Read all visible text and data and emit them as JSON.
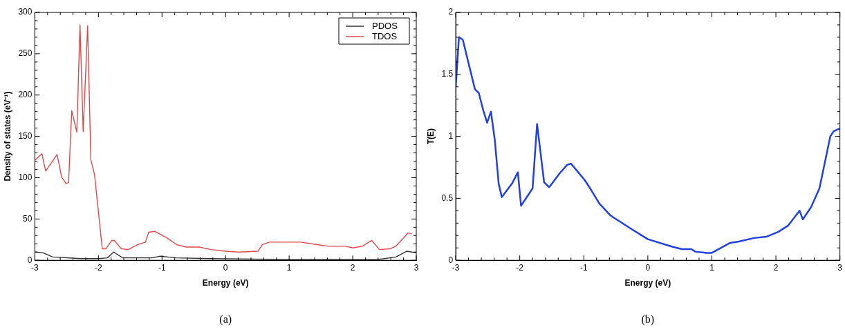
{
  "chart_data": [
    {
      "type": "line",
      "xlabel": "Energy (eV)",
      "ylabel": "Density of states (eV⁻¹)",
      "xlim": [
        -3,
        3
      ],
      "ylim": [
        0,
        300
      ],
      "xticks": [
        -3,
        {
          "value": -2.8,
          "label": null
        },
        {
          "value": -2.6,
          "label": null
        },
        {
          "value": -2.4,
          "label": null
        },
        {
          "value": -2.2,
          "label": null
        },
        -2,
        {
          "value": -1.8,
          "label": null
        },
        {
          "value": -1.6,
          "label": null
        },
        {
          "value": -1.4,
          "label": null
        },
        {
          "value": -1.2,
          "label": null
        },
        -1,
        {
          "value": -0.8,
          "label": null
        },
        {
          "value": -0.6,
          "label": null
        },
        {
          "value": -0.4,
          "label": null
        },
        {
          "value": -0.2,
          "label": null
        },
        0,
        {
          "value": 0.2,
          "label": null
        },
        {
          "value": 0.4,
          "label": null
        },
        {
          "value": 0.6,
          "label": null
        },
        {
          "value": 0.8,
          "label": null
        },
        1,
        {
          "value": 1.2,
          "label": null
        },
        {
          "value": 1.4,
          "label": null
        },
        {
          "value": 1.6,
          "label": null
        },
        {
          "value": 1.8,
          "label": null
        },
        2,
        {
          "value": 2.2,
          "label": null
        },
        {
          "value": 2.4,
          "label": null
        },
        {
          "value": 2.6,
          "label": null
        },
        {
          "value": 2.8,
          "label": null
        },
        3
      ],
      "yticks": [
        0,
        {
          "value": 10,
          "label": null
        },
        {
          "value": 20,
          "label": null
        },
        {
          "value": 30,
          "label": null
        },
        {
          "value": 40,
          "label": null
        },
        50,
        {
          "value": 60,
          "label": null
        },
        {
          "value": 70,
          "label": null
        },
        {
          "value": 80,
          "label": null
        },
        {
          "value": 90,
          "label": null
        },
        100,
        {
          "value": 110,
          "label": null
        },
        {
          "value": 120,
          "label": null
        },
        {
          "value": 130,
          "label": null
        },
        {
          "value": 140,
          "label": null
        },
        150,
        {
          "value": 160,
          "label": null
        },
        {
          "value": 170,
          "label": null
        },
        {
          "value": 180,
          "label": null
        },
        {
          "value": 190,
          "label": null
        },
        200,
        {
          "value": 210,
          "label": null
        },
        {
          "value": 220,
          "label": null
        },
        {
          "value": 230,
          "label": null
        },
        {
          "value": 240,
          "label": null
        },
        250,
        {
          "value": 260,
          "label": null
        },
        {
          "value": 270,
          "label": null
        },
        {
          "value": 280,
          "label": null
        },
        {
          "value": 290,
          "label": null
        },
        300
      ],
      "legend": "top right",
      "marker": "none",
      "annotations": [
        "(a)"
      ],
      "series": [
        {
          "name": "PDOS",
          "color": "#333333",
          "x": [
            -3,
            -2.87,
            -2.72,
            -2.27,
            -2.0,
            -1.86,
            -1.76,
            -1.62,
            -1.15,
            -1.03,
            -0.78,
            -0.23,
            0.9,
            2.4,
            2.68,
            2.85,
            2.93,
            3
          ],
          "values": [
            10,
            9,
            4,
            2,
            2,
            3,
            10,
            3,
            3,
            5,
            3,
            2,
            1,
            1,
            4,
            11,
            10,
            9
          ]
        },
        {
          "name": "TDOS",
          "color": "#e04848",
          "x": [
            -3,
            -2.89,
            -2.83,
            -2.65,
            -2.58,
            -2.51,
            -2.47,
            -2.42,
            -2.34,
            -2.29,
            -2.24,
            -2.17,
            -2.12,
            -2.06,
            -1.94,
            -1.88,
            -1.79,
            -1.75,
            -1.64,
            -1.53,
            -1.38,
            -1.26,
            -1.21,
            -1.11,
            -0.92,
            -0.77,
            -0.62,
            -0.42,
            -0.23,
            0.0,
            0.21,
            0.51,
            0.58,
            0.69,
            1.18,
            1.44,
            1.63,
            1.89,
            2.0,
            2.15,
            2.3,
            2.42,
            2.59,
            2.68,
            2.87,
            2.93
          ],
          "values": [
            121,
            129,
            108,
            128,
            101,
            93,
            94,
            181,
            155,
            285,
            156,
            284,
            122,
            103,
            14,
            14,
            24,
            24,
            14,
            13,
            19,
            22,
            34,
            35,
            27,
            19,
            16,
            16,
            13,
            11,
            10,
            11,
            19,
            22,
            22,
            19,
            17,
            17,
            15,
            17,
            24,
            13,
            14,
            17,
            33,
            32
          ]
        }
      ]
    },
    {
      "type": "line",
      "xlabel": "Energy (eV)",
      "ylabel": "T(E)",
      "xlim": [
        -3,
        3
      ],
      "ylim": [
        0,
        2
      ],
      "xticks": [
        -3,
        {
          "value": -2.8,
          "label": null
        },
        {
          "value": -2.6,
          "label": null
        },
        {
          "value": -2.4,
          "label": null
        },
        {
          "value": -2.2,
          "label": null
        },
        -2,
        {
          "value": -1.8,
          "label": null
        },
        {
          "value": -1.6,
          "label": null
        },
        {
          "value": -1.4,
          "label": null
        },
        {
          "value": -1.2,
          "label": null
        },
        -1,
        {
          "value": -0.8,
          "label": null
        },
        {
          "value": -0.6,
          "label": null
        },
        {
          "value": -0.4,
          "label": null
        },
        {
          "value": -0.2,
          "label": null
        },
        0,
        {
          "value": 0.2,
          "label": null
        },
        {
          "value": 0.4,
          "label": null
        },
        {
          "value": 0.6,
          "label": null
        },
        {
          "value": 0.8,
          "label": null
        },
        1,
        {
          "value": 1.2,
          "label": null
        },
        {
          "value": 1.4,
          "label": null
        },
        {
          "value": 1.6,
          "label": null
        },
        {
          "value": 1.8,
          "label": null
        },
        2,
        {
          "value": 2.2,
          "label": null
        },
        {
          "value": 2.4,
          "label": null
        },
        {
          "value": 2.6,
          "label": null
        },
        {
          "value": 2.8,
          "label": null
        },
        3
      ],
      "yticks": [
        0,
        {
          "value": 0.1,
          "label": null
        },
        {
          "value": 0.2,
          "label": null
        },
        {
          "value": 0.3,
          "label": null
        },
        {
          "value": 0.4,
          "label": null
        },
        0.5,
        {
          "value": 0.6,
          "label": null
        },
        {
          "value": 0.7,
          "label": null
        },
        {
          "value": 0.8,
          "label": null
        },
        {
          "value": 0.9,
          "label": null
        },
        1,
        {
          "value": 1.1,
          "label": null
        },
        {
          "value": 1.2,
          "label": null
        },
        {
          "value": 1.3,
          "label": null
        },
        {
          "value": 1.4,
          "label": null
        },
        1.5,
        {
          "value": 1.6,
          "label": null
        },
        {
          "value": 1.7,
          "label": null
        },
        {
          "value": 1.8,
          "label": null
        },
        {
          "value": 1.9,
          "label": null
        },
        2
      ],
      "marker": "none",
      "annotations": [
        "(b)"
      ],
      "series": [
        {
          "color": "#2040e0",
          "x": [
            -3,
            -2.95,
            -2.89,
            -2.8,
            -2.7,
            -2.64,
            -2.57,
            -2.51,
            -2.45,
            -2.39,
            -2.33,
            -2.28,
            -2.12,
            -2.03,
            -1.98,
            -1.8,
            -1.73,
            -1.62,
            -1.54,
            -1.38,
            -1.26,
            -1.2,
            -0.99,
            -0.9,
            -0.76,
            -0.58,
            -0.4,
            -0.25,
            0.0,
            0.38,
            0.53,
            0.68,
            0.74,
            0.91,
            1.0,
            1.28,
            1.41,
            1.66,
            1.85,
            2.04,
            2.19,
            2.37,
            2.42,
            2.55,
            2.68,
            2.85,
            2.9,
            2.98,
            3
          ],
          "values": [
            1.4,
            1.8,
            1.78,
            1.59,
            1.38,
            1.35,
            1.21,
            1.11,
            1.2,
            0.97,
            0.62,
            0.51,
            0.62,
            0.71,
            0.44,
            0.58,
            1.1,
            0.63,
            0.59,
            0.7,
            0.77,
            0.78,
            0.65,
            0.58,
            0.46,
            0.36,
            0.3,
            0.25,
            0.17,
            0.11,
            0.09,
            0.09,
            0.07,
            0.06,
            0.06,
            0.14,
            0.15,
            0.18,
            0.19,
            0.23,
            0.28,
            0.4,
            0.33,
            0.43,
            0.58,
            1.0,
            1.04,
            1.06,
            1.06
          ]
        }
      ]
    }
  ]
}
